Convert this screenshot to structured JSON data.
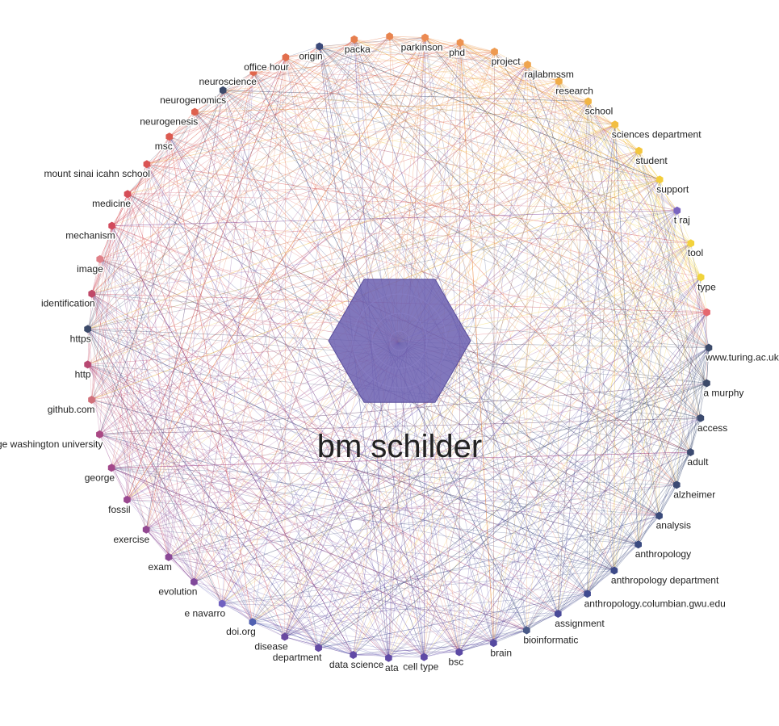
{
  "center": {
    "label": "bm schilder",
    "color": "#6b5fb0"
  },
  "palette": {
    "top": "#f3d23c",
    "warm": "#e4684e",
    "left": "#c9475b",
    "cool": "#3c4a7a",
    "bottom": "#5a4aa6"
  },
  "nodes": [
    {
      "label": "parkinson",
      "color": "#ec8a52"
    },
    {
      "label": "phd",
      "color": "#ed9251"
    },
    {
      "label": "project",
      "color": "#ee9a50"
    },
    {
      "label": "rajlabmssm",
      "color": "#efa44c"
    },
    {
      "label": "research",
      "color": "#f0ac48"
    },
    {
      "label": "school",
      "color": "#f1b544"
    },
    {
      "label": "sciences department",
      "color": "#f2be40"
    },
    {
      "label": "student",
      "color": "#f3c63d"
    },
    {
      "label": "support",
      "color": "#f3cd3c"
    },
    {
      "label": "t raj",
      "color": "#7a64c0"
    },
    {
      "label": "tool",
      "color": "#f3d23c"
    },
    {
      "label": "type",
      "color": "#f0d33c"
    },
    {
      "label": "",
      "color": "#e5676f"
    },
    {
      "label": "www.turing.ac.uk",
      "color": "#3c4a6a"
    },
    {
      "label": "a murphy",
      "color": "#3c4a6a"
    },
    {
      "label": "access",
      "color": "#3c4a6e"
    },
    {
      "label": "adult",
      "color": "#3c4a70"
    },
    {
      "label": "alzheimer",
      "color": "#3b4a74"
    },
    {
      "label": "analysis",
      "color": "#3a4a7a"
    },
    {
      "label": "anthropology",
      "color": "#3a4a80"
    },
    {
      "label": "anthropology department",
      "color": "#3d4a88"
    },
    {
      "label": "anthropology.columbian.gwu.edu",
      "color": "#404a90"
    },
    {
      "label": "assignment",
      "color": "#4a4a98"
    },
    {
      "label": "bioinformatic",
      "color": "#4a5a88"
    },
    {
      "label": "brain",
      "color": "#564aa0"
    },
    {
      "label": "bsc",
      "color": "#5c4aa4"
    },
    {
      "label": "cell type",
      "color": "#5e4aa6"
    },
    {
      "label": "ata",
      "color": "#604aa6"
    },
    {
      "label": "data science",
      "color": "#624aa6"
    },
    {
      "label": "department",
      "color": "#644aa4"
    },
    {
      "label": "disease",
      "color": "#6a4aa0"
    },
    {
      "label": "doi.org",
      "color": "#5060b0"
    },
    {
      "label": "e navarro",
      "color": "#7060c0"
    },
    {
      "label": "evolution",
      "color": "#80489a"
    },
    {
      "label": "exam",
      "color": "#8a4896"
    },
    {
      "label": "exercise",
      "color": "#924892"
    },
    {
      "label": "fossil",
      "color": "#9a4890"
    },
    {
      "label": "george",
      "color": "#a2488a"
    },
    {
      "label": "george washington university",
      "color": "#aa4884"
    },
    {
      "label": "github.com",
      "color": "#d0707a"
    },
    {
      "label": "http",
      "color": "#b84872"
    },
    {
      "label": "https",
      "color": "#3c4a6a"
    },
    {
      "label": "identification",
      "color": "#c04868"
    },
    {
      "label": "image",
      "color": "#e08088"
    },
    {
      "label": "mechanism",
      "color": "#d24a5c"
    },
    {
      "label": "medicine",
      "color": "#d64e58"
    },
    {
      "label": "mount sinai icahn school",
      "color": "#da5454"
    },
    {
      "label": "msc",
      "color": "#dc5a50"
    },
    {
      "label": "neurogenesis",
      "color": "#de604e"
    },
    {
      "label": "neurogenomics",
      "color": "#3c4a6a"
    },
    {
      "label": "neuroscience",
      "color": "#e0664c"
    },
    {
      "label": "office hour",
      "color": "#e26e4c"
    },
    {
      "label": "origin",
      "color": "#3c4a7a"
    },
    {
      "label": "packa",
      "color": "#e67e4e"
    },
    {
      "label": "",
      "color": "#e8844f"
    }
  ]
}
